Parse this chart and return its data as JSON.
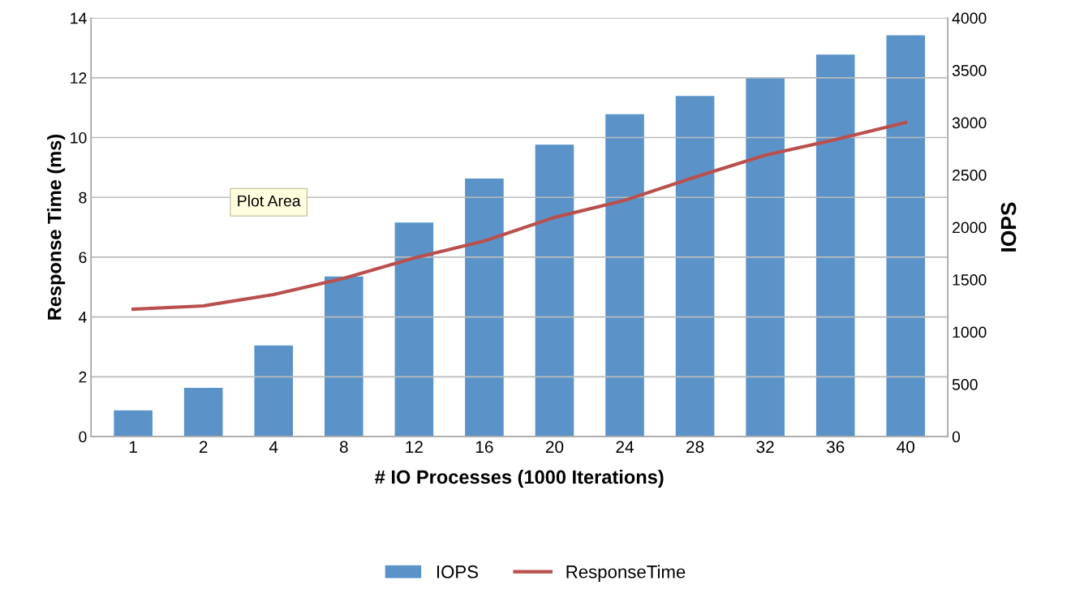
{
  "chart_data": {
    "type": "bar",
    "xlabel": "# IO Processes (1000 Iterations)",
    "ylabel": "Response Time (ms)",
    "y2label": "IOPS",
    "categories": [
      "1",
      "2",
      "4",
      "8",
      "12",
      "16",
      "20",
      "24",
      "28",
      "32",
      "36",
      "40"
    ],
    "series": [
      {
        "name": "IOPS",
        "axis": "y2",
        "color": "#5b93c9",
        "values": [
          250,
          465,
          870,
          1530,
          2045,
          2465,
          2790,
          3080,
          3255,
          3435,
          3650,
          3835
        ]
      },
      {
        "name": "ResponseTime",
        "type": "line",
        "color": "#b9504d",
        "values": [
          4.26,
          4.37,
          4.75,
          5.29,
          5.97,
          6.54,
          7.33,
          7.9,
          8.68,
          9.41,
          9.93,
          10.5
        ]
      }
    ],
    "ylim": [
      0,
      14
    ],
    "yticks": [
      0,
      2,
      4,
      6,
      8,
      10,
      12,
      14
    ],
    "y2lim": [
      0,
      4000
    ],
    "y2ticks": [
      0,
      500,
      1000,
      1500,
      2000,
      2500,
      3000,
      3500,
      4000
    ],
    "grid": "y",
    "legend": "bottom",
    "marker": "none",
    "line_style": "solid",
    "annotations": [
      "Plot Area"
    ]
  }
}
